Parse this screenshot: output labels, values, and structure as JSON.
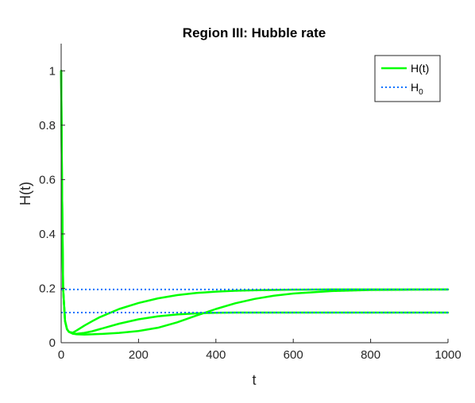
{
  "chart_data": {
    "type": "line",
    "title": "Region III: Hubble rate",
    "xlabel": "t",
    "ylabel": "H(t)",
    "xlim": [
      0,
      1000
    ],
    "ylim": [
      0,
      1.1
    ],
    "xticks": [
      0,
      200,
      400,
      600,
      800,
      1000
    ],
    "yticks": [
      0,
      0.2,
      0.4,
      0.6,
      0.8,
      1
    ],
    "xtick_labels": [
      "0",
      "200",
      "400",
      "600",
      "800",
      "1000"
    ],
    "ytick_labels": [
      "0",
      "0.2",
      "0.4",
      "0.6",
      "0.8",
      "1"
    ],
    "grid": false,
    "legend_position": "top-right",
    "legend": [
      {
        "label": "H(t)",
        "style": "solid",
        "color": "#00ff00"
      },
      {
        "label": "H",
        "subscript": "0",
        "style": "dotted",
        "color": "#0072ff"
      }
    ],
    "series": [
      {
        "legend_label": "H(t)",
        "color": "#00ff00",
        "style": "solid",
        "x": [
          0,
          2,
          5,
          10,
          15,
          20,
          30,
          40,
          60,
          80,
          100,
          150,
          200,
          250,
          300,
          350,
          400,
          450,
          500,
          550,
          600,
          700,
          800,
          900,
          1000
        ],
        "y": [
          1.0,
          0.6,
          0.2,
          0.08,
          0.05,
          0.04,
          0.037,
          0.045,
          0.063,
          0.079,
          0.094,
          0.124,
          0.146,
          0.163,
          0.175,
          0.183,
          0.188,
          0.191,
          0.193,
          0.194,
          0.195,
          0.196,
          0.196,
          0.196,
          0.196
        ]
      },
      {
        "color": "#00ff00",
        "style": "solid",
        "x": [
          0,
          2,
          5,
          10,
          15,
          20,
          30,
          40,
          60,
          80,
          100,
          150,
          200,
          250,
          300,
          350,
          400,
          450,
          500,
          550,
          600,
          700,
          800,
          900,
          1000
        ],
        "y": [
          1.0,
          0.6,
          0.2,
          0.08,
          0.05,
          0.04,
          0.034,
          0.033,
          0.036,
          0.042,
          0.05,
          0.07,
          0.086,
          0.097,
          0.104,
          0.108,
          0.11,
          0.111,
          0.111,
          0.111,
          0.111,
          0.111,
          0.111,
          0.111,
          0.111
        ]
      },
      {
        "color": "#00ff00",
        "style": "solid",
        "x": [
          0,
          2,
          5,
          10,
          15,
          20,
          30,
          40,
          60,
          80,
          100,
          150,
          200,
          250,
          300,
          350,
          400,
          450,
          500,
          550,
          600,
          700,
          800,
          900,
          1000
        ],
        "y": [
          1.0,
          0.6,
          0.2,
          0.08,
          0.05,
          0.04,
          0.033,
          0.031,
          0.03,
          0.031,
          0.032,
          0.036,
          0.043,
          0.055,
          0.075,
          0.1,
          0.124,
          0.145,
          0.161,
          0.173,
          0.181,
          0.19,
          0.194,
          0.195,
          0.196
        ]
      },
      {
        "legend_label": "H0",
        "color": "#0072ff",
        "style": "dotted",
        "x": [
          0,
          1000
        ],
        "y": [
          0.196,
          0.196
        ]
      },
      {
        "color": "#0072ff",
        "style": "dotted",
        "x": [
          0,
          1000
        ],
        "y": [
          0.111,
          0.111
        ]
      }
    ]
  }
}
